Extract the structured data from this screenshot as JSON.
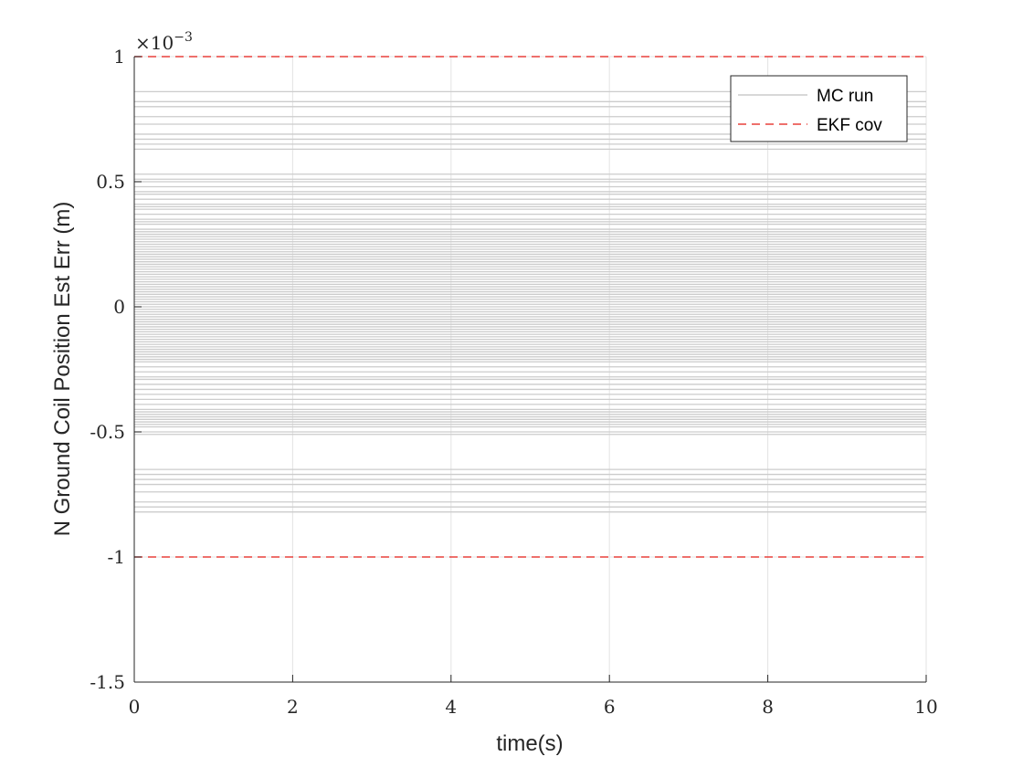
{
  "chart_data": {
    "type": "line",
    "xlabel": "time(s)",
    "ylabel": "N Ground Coil Position Est Err (m)",
    "exponent_label": {
      "base": "×10",
      "power": "−3"
    },
    "xlim": [
      0,
      10
    ],
    "ylim": [
      -1.5,
      1
    ],
    "y_scale_factor": 0.001,
    "x_ticks": [
      0,
      2,
      4,
      6,
      8,
      10
    ],
    "x_tick_labels": [
      "0",
      "2",
      "4",
      "6",
      "8",
      "10"
    ],
    "y_ticks": [
      -1.5,
      -1,
      -0.5,
      0,
      0.5,
      1
    ],
    "y_tick_labels": [
      "-1.5",
      "-1",
      "-0.5",
      "0",
      "0.5",
      "1"
    ],
    "grid": true,
    "legend": {
      "position": "top-right",
      "entries": [
        {
          "label": "MC run",
          "color": "#cccccc",
          "style": "solid"
        },
        {
          "label": "EKF cov",
          "color": "#e8403c",
          "style": "dashed"
        }
      ]
    },
    "series": [
      {
        "name": "MC run",
        "color": "#cccccc",
        "style": "solid",
        "x_range": [
          0,
          10
        ],
        "constant_levels": [
          0.86,
          0.82,
          0.8,
          0.76,
          0.73,
          0.69,
          0.67,
          0.65,
          0.63,
          0.53,
          0.51,
          0.5,
          0.48,
          0.46,
          0.45,
          0.43,
          0.41,
          0.4,
          0.39,
          0.37,
          0.35,
          0.34,
          0.33,
          0.31,
          0.3,
          0.29,
          0.28,
          0.27,
          0.26,
          0.25,
          0.24,
          0.23,
          0.22,
          0.21,
          0.2,
          0.19,
          0.18,
          0.17,
          0.16,
          0.15,
          0.14,
          0.13,
          0.12,
          0.11,
          0.1,
          0.09,
          0.08,
          0.07,
          0.06,
          0.05,
          0.04,
          0.03,
          0.02,
          0.01,
          0.0,
          -0.01,
          -0.02,
          -0.03,
          -0.04,
          -0.05,
          -0.06,
          -0.07,
          -0.08,
          -0.09,
          -0.1,
          -0.11,
          -0.12,
          -0.13,
          -0.14,
          -0.15,
          -0.16,
          -0.17,
          -0.18,
          -0.19,
          -0.2,
          -0.21,
          -0.22,
          -0.24,
          -0.26,
          -0.28,
          -0.29,
          -0.31,
          -0.33,
          -0.35,
          -0.37,
          -0.39,
          -0.41,
          -0.42,
          -0.43,
          -0.44,
          -0.45,
          -0.46,
          -0.47,
          -0.48,
          -0.5,
          -0.51,
          -0.65,
          -0.67,
          -0.69,
          -0.71,
          -0.74,
          -0.78,
          -0.8,
          -0.82
        ]
      },
      {
        "name": "EKF cov",
        "color": "#e8403c",
        "style": "dashed",
        "x_range": [
          0,
          10
        ],
        "constant_levels": [
          1,
          -1
        ]
      }
    ]
  }
}
